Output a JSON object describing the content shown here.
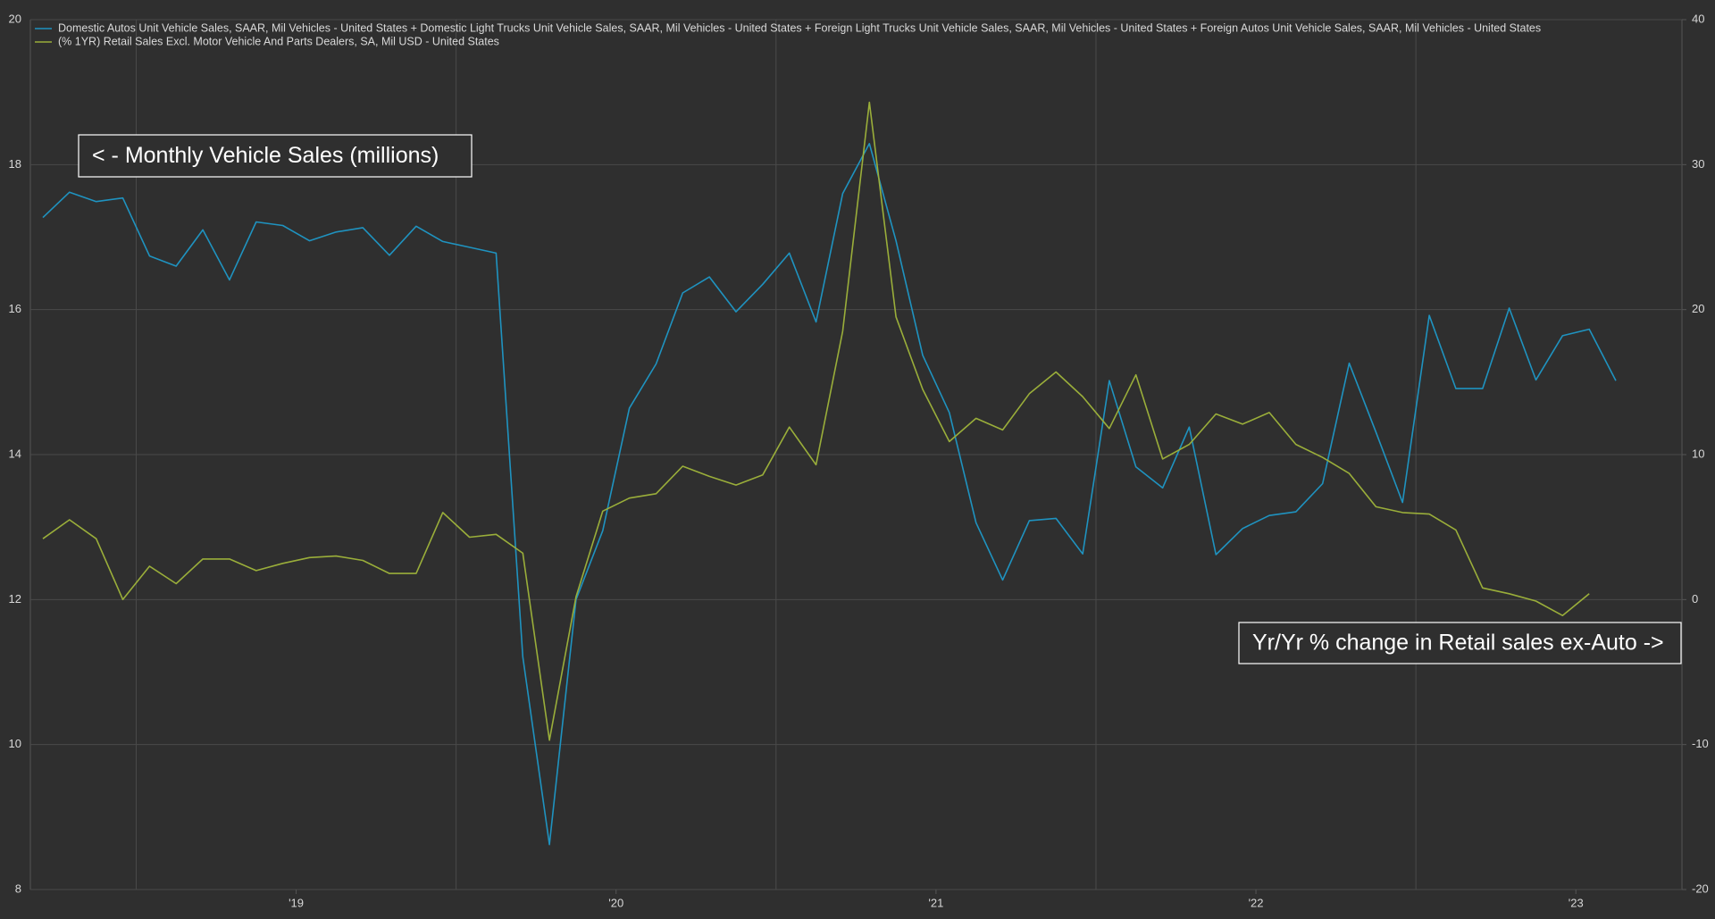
{
  "chart_data": {
    "type": "line",
    "legend": "top-left",
    "grid": true,
    "annotations": [
      "< - Monthly Vehicle Sales (millions)",
      "Yr/Yr % change in Retail sales ex-Auto ->"
    ],
    "categories": [
      null,
      null,
      null,
      null,
      null,
      null,
      null,
      null,
      null,
      "'19",
      null,
      null,
      null,
      null,
      null,
      null,
      null,
      null,
      null,
      null,
      null,
      "'20",
      null,
      null,
      null,
      null,
      null,
      null,
      null,
      null,
      null,
      null,
      null,
      "'21",
      null,
      null,
      null,
      null,
      null,
      null,
      null,
      null,
      null,
      null,
      null,
      "'22",
      null,
      null,
      null,
      null,
      null,
      null,
      null,
      null,
      null,
      null,
      null,
      "'23",
      null,
      null
    ],
    "ylim": [
      8,
      20
    ],
    "yticks": [
      8,
      10,
      12,
      14,
      16,
      18,
      20
    ],
    "y2lim": [
      -20,
      40
    ],
    "y2ticks": [
      -20,
      -10,
      0,
      10,
      20,
      30,
      40
    ],
    "series": [
      {
        "name": "Domestic Autos Unit Vehicle Sales, SAAR, Mil Vehicles - United States + Domestic Light Trucks Unit Vehicle Sales, SAAR, Mil Vehicles - United States + Foreign Light Trucks Unit Vehicle Sales, SAAR, Mil Vehicles - United States + Foreign Autos Unit Vehicle Sales, SAAR, Mil Vehicles - United States",
        "color": "#1f93c0",
        "values": [
          17.27,
          17.62,
          17.49,
          17.54,
          16.74,
          16.6,
          17.1,
          16.41,
          17.21,
          17.16,
          16.95,
          17.07,
          17.13,
          16.75,
          17.15,
          16.94,
          16.86,
          16.78,
          11.21,
          8.62,
          12.0,
          12.95,
          14.64,
          15.25,
          16.23,
          16.45,
          15.97,
          16.35,
          16.78,
          15.83,
          17.6,
          18.29,
          16.95,
          15.37,
          14.58,
          13.06,
          12.27,
          13.09,
          13.12,
          12.63,
          15.02,
          13.83,
          13.54,
          14.38,
          12.62,
          12.98,
          13.16,
          13.21,
          13.6,
          15.26,
          14.31,
          13.34,
          15.92,
          14.91,
          14.91,
          16.02,
          15.03,
          15.64,
          15.73,
          15.02
        ]
      },
      {
        "name": "(% 1YR) Retail Sales Excl. Motor Vehicle And Parts Dealers, SA, Mil USD - United States",
        "color": "#9aae3a",
        "axis": "y2",
        "values": [
          4.2,
          5.5,
          4.2,
          0,
          2.3,
          1.1,
          2.8,
          2.8,
          2.0,
          2.5,
          2.9,
          3.0,
          2.7,
          1.8,
          1.8,
          6.0,
          4.3,
          4.5,
          3.2,
          -9.7,
          0.2,
          6.1,
          7.0,
          7.3,
          9.2,
          8.5,
          7.9,
          8.6,
          11.9,
          9.3,
          18.5,
          34.3,
          19.5,
          14.5,
          10.9,
          12.5,
          11.7,
          14.2,
          15.7,
          14.0,
          11.8,
          15.5,
          9.7,
          10.7,
          12.8,
          12.1,
          12.9,
          10.7,
          9.8,
          8.7,
          6.4,
          6.0,
          5.9,
          4.8,
          0.8,
          0.4,
          -0.1,
          -1.1,
          0.4,
          null
        ]
      }
    ]
  }
}
